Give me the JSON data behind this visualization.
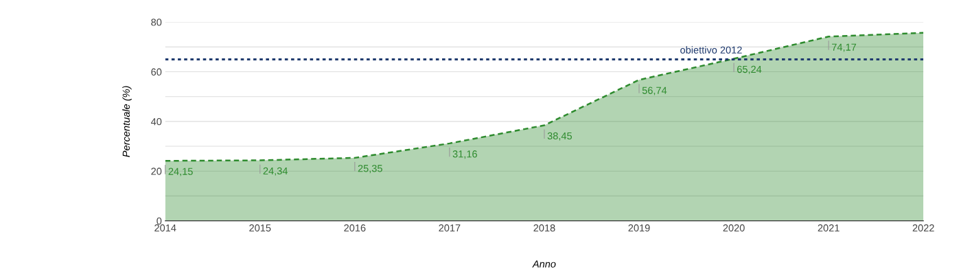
{
  "chart_data": {
    "type": "area",
    "xlabel": "Anno",
    "ylabel": "Percentuale (%)",
    "x": [
      2014,
      2015,
      2016,
      2017,
      2018,
      2019,
      2020,
      2021,
      2022
    ],
    "series": [
      {
        "color": "#2e8b2e",
        "line_style": "dashed",
        "values": [
          24.15,
          24.34,
          25.35,
          31.16,
          38.45,
          56.74,
          65.24,
          74.17,
          75.7
        ],
        "value_labels": [
          "24,15",
          "24,34",
          "25,35",
          "31,16",
          "38,45",
          "56,74",
          "65,24",
          "74,17",
          null
        ]
      }
    ],
    "xlim": [
      2014,
      2022
    ],
    "xticks": [
      2014,
      2015,
      2016,
      2017,
      2018,
      2019,
      2020,
      2021,
      2022
    ],
    "ylim": [
      0,
      80
    ],
    "yticks": [
      0,
      {
        "value": 10,
        "label": null
      },
      20,
      {
        "value": 30,
        "label": null
      },
      40,
      {
        "value": 50,
        "label": null
      },
      60,
      {
        "value": 70,
        "label": null
      },
      80
    ],
    "grid": "y",
    "marker": "none",
    "ref_lines": [
      {
        "axis": "y",
        "value": 65,
        "label": "obiettivo 2012",
        "color": "#1f3a6e",
        "line_style": "dotted"
      }
    ]
  }
}
